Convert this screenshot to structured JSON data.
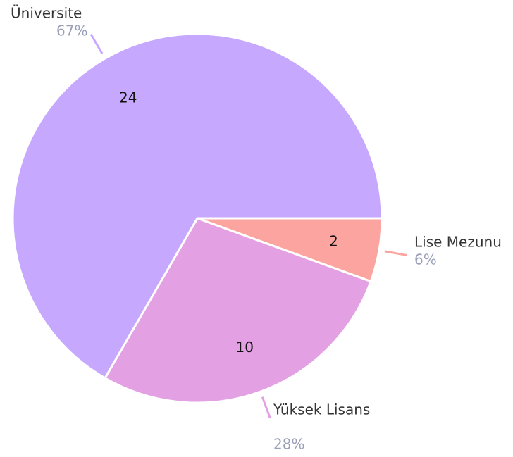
{
  "chart_data": {
    "type": "pie",
    "categories": [
      "Üniversite",
      "Yüksek Lisans",
      "Lise Mezunu"
    ],
    "values": [
      24,
      10,
      2
    ],
    "value_labels": [
      "67%",
      "28%",
      "6%"
    ],
    "colors": [
      "#c6a9fe",
      "#e3a0e3",
      "#fca5a0"
    ]
  }
}
